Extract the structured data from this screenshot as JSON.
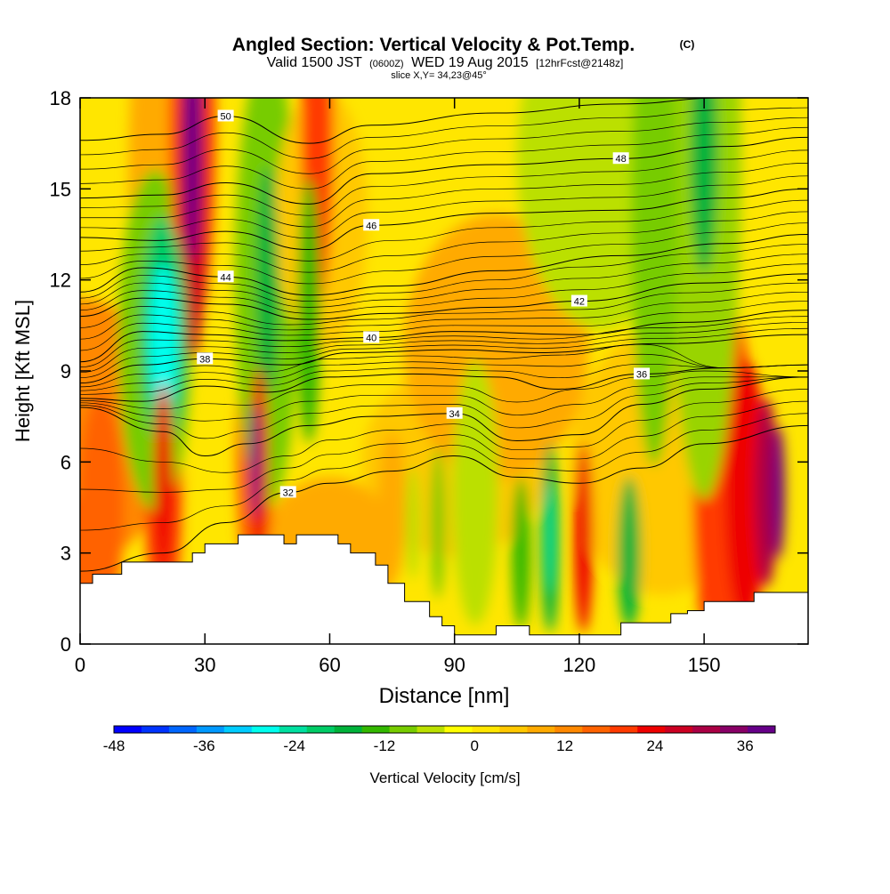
{
  "header": {
    "title": "Angled Section: Vertical Velocity & Pot.Temp.",
    "copyright": "(C)",
    "valid_prefix": "Valid 1500 JST",
    "valid_utc": "(0600Z)",
    "valid_date": "WED 19 Aug 2015",
    "forecast": "[12hrFcst@2148z]",
    "slice": "slice X,Y= 34,23@45°"
  },
  "chart_data": {
    "type": "heatmap",
    "xlabel": "Distance [nm]",
    "ylabel": "Height [Kft MSL]",
    "xlim": [
      0,
      175
    ],
    "ylim": [
      0,
      18
    ],
    "x_ticks": [
      0,
      30,
      60,
      90,
      120,
      150
    ],
    "y_ticks": [
      0,
      3,
      6,
      9,
      12,
      15,
      18
    ],
    "colorbar": {
      "label": "Vertical Velocity [cm/s]",
      "min": -48,
      "max": 40,
      "step": 4,
      "tick_values": [
        -48,
        -36,
        -24,
        -12,
        0,
        12,
        24,
        36
      ],
      "colors": [
        "#0000ff",
        "#0033ff",
        "#0066ff",
        "#0099ff",
        "#00ccff",
        "#00ffee",
        "#00e0a0",
        "#00cc66",
        "#00b23a",
        "#33b800",
        "#77cc00",
        "#bbe000",
        "#ffff00",
        "#ffe600",
        "#ffc800",
        "#ffaa00",
        "#ff8800",
        "#ff6200",
        "#ff3a00",
        "#ee0000",
        "#cc0022",
        "#aa0044",
        "#880066",
        "#660088"
      ]
    },
    "terrain": [
      [
        0,
        2.0
      ],
      [
        3,
        2.0
      ],
      [
        3,
        2.3
      ],
      [
        10,
        2.3
      ],
      [
        10,
        2.7
      ],
      [
        27,
        2.7
      ],
      [
        27,
        3.0
      ],
      [
        30,
        3.0
      ],
      [
        30,
        3.3
      ],
      [
        38,
        3.3
      ],
      [
        38,
        3.6
      ],
      [
        49,
        3.6
      ],
      [
        49,
        3.3
      ],
      [
        52,
        3.3
      ],
      [
        52,
        3.6
      ],
      [
        62,
        3.6
      ],
      [
        62,
        3.3
      ],
      [
        65,
        3.3
      ],
      [
        65,
        3.0
      ],
      [
        71,
        3.0
      ],
      [
        71,
        2.6
      ],
      [
        74,
        2.6
      ],
      [
        74,
        2.0
      ],
      [
        78,
        2.0
      ],
      [
        78,
        1.4
      ],
      [
        84,
        1.4
      ],
      [
        84,
        0.9
      ],
      [
        87,
        0.9
      ],
      [
        87,
        0.6
      ],
      [
        90,
        0.6
      ],
      [
        90,
        0.3
      ],
      [
        100,
        0.3
      ],
      [
        100,
        0.6
      ],
      [
        108,
        0.6
      ],
      [
        108,
        0.3
      ],
      [
        130,
        0.3
      ],
      [
        130,
        0.7
      ],
      [
        142,
        0.7
      ],
      [
        142,
        1.0
      ],
      [
        146,
        1.0
      ],
      [
        146,
        1.1
      ],
      [
        150,
        1.1
      ],
      [
        150,
        1.4
      ],
      [
        162,
        1.4
      ],
      [
        162,
        1.7
      ],
      [
        175,
        1.7
      ]
    ],
    "isentropes": [
      {
        "value": "32",
        "points": [
          [
            0,
            2.4
          ],
          [
            20,
            3.0
          ],
          [
            35,
            4.0
          ],
          [
            50,
            5.0
          ],
          [
            60,
            5.3
          ],
          [
            75,
            5.7
          ],
          [
            90,
            6.2
          ],
          [
            105,
            5.5
          ],
          [
            120,
            5.3
          ],
          [
            135,
            5.8
          ],
          [
            150,
            6.6
          ],
          [
            175,
            7.2
          ]
        ]
      },
      {
        "value": "34",
        "points": [
          [
            0,
            7.8
          ],
          [
            20,
            7.0
          ],
          [
            30,
            6.2
          ],
          [
            40,
            6.6
          ],
          [
            55,
            7.2
          ],
          [
            70,
            7.5
          ],
          [
            90,
            7.6
          ],
          [
            105,
            6.7
          ],
          [
            120,
            6.9
          ],
          [
            135,
            7.9
          ],
          [
            150,
            8.4
          ],
          [
            175,
            8.8
          ]
        ]
      },
      {
        "value": "36",
        "points": [
          [
            0,
            8.1
          ],
          [
            15,
            8.0
          ],
          [
            30,
            8.5
          ],
          [
            45,
            8.3
          ],
          [
            60,
            8.8
          ],
          [
            80,
            8.9
          ],
          [
            100,
            8.8
          ],
          [
            115,
            8.4
          ],
          [
            135,
            8.9
          ],
          [
            155,
            9.1
          ],
          [
            175,
            9.2
          ]
        ]
      },
      {
        "value": "38",
        "points": [
          [
            0,
            8.6
          ],
          [
            15,
            9.2
          ],
          [
            30,
            9.4
          ],
          [
            50,
            9.2
          ],
          [
            65,
            9.6
          ],
          [
            90,
            9.7
          ],
          [
            110,
            9.6
          ],
          [
            140,
            9.9
          ],
          [
            175,
            10.2
          ]
        ]
      },
      {
        "value": "40",
        "points": [
          [
            0,
            9.3
          ],
          [
            15,
            10.3
          ],
          [
            30,
            10.2
          ],
          [
            50,
            10.0
          ],
          [
            70,
            10.1
          ],
          [
            90,
            10.3
          ],
          [
            120,
            10.2
          ],
          [
            145,
            10.6
          ],
          [
            175,
            11.0
          ]
        ]
      },
      {
        "value": "42",
        "points": [
          [
            0,
            10.8
          ],
          [
            15,
            11.4
          ],
          [
            35,
            11.2
          ],
          [
            55,
            10.7
          ],
          [
            75,
            10.9
          ],
          [
            100,
            11.1
          ],
          [
            120,
            11.3
          ],
          [
            150,
            11.9
          ],
          [
            175,
            12.2
          ]
        ]
      },
      {
        "value": "44",
        "points": [
          [
            0,
            11.6
          ],
          [
            15,
            12.4
          ],
          [
            35,
            12.1
          ],
          [
            55,
            11.5
          ],
          [
            75,
            11.8
          ],
          [
            100,
            12.3
          ],
          [
            130,
            12.8
          ],
          [
            155,
            13.2
          ],
          [
            175,
            13.5
          ]
        ]
      },
      {
        "value": "46",
        "points": [
          [
            0,
            13.4
          ],
          [
            18,
            13.3
          ],
          [
            35,
            13.6
          ],
          [
            55,
            13.0
          ],
          [
            70,
            13.8
          ],
          [
            100,
            14.2
          ],
          [
            130,
            14.3
          ],
          [
            155,
            14.7
          ],
          [
            175,
            15.0
          ]
        ]
      },
      {
        "value": "48",
        "points": [
          [
            0,
            14.7
          ],
          [
            20,
            14.8
          ],
          [
            35,
            15.2
          ],
          [
            55,
            14.5
          ],
          [
            70,
            15.5
          ],
          [
            100,
            15.8
          ],
          [
            130,
            16.0
          ],
          [
            155,
            16.4
          ],
          [
            175,
            16.7
          ]
        ]
      },
      {
        "value": "50",
        "points": [
          [
            0,
            16.6
          ],
          [
            20,
            16.8
          ],
          [
            35,
            17.4
          ],
          [
            55,
            16.5
          ],
          [
            70,
            17.1
          ],
          [
            100,
            17.5
          ],
          [
            130,
            17.8
          ],
          [
            155,
            18.0
          ],
          [
            175,
            18.0
          ]
        ]
      }
    ]
  }
}
